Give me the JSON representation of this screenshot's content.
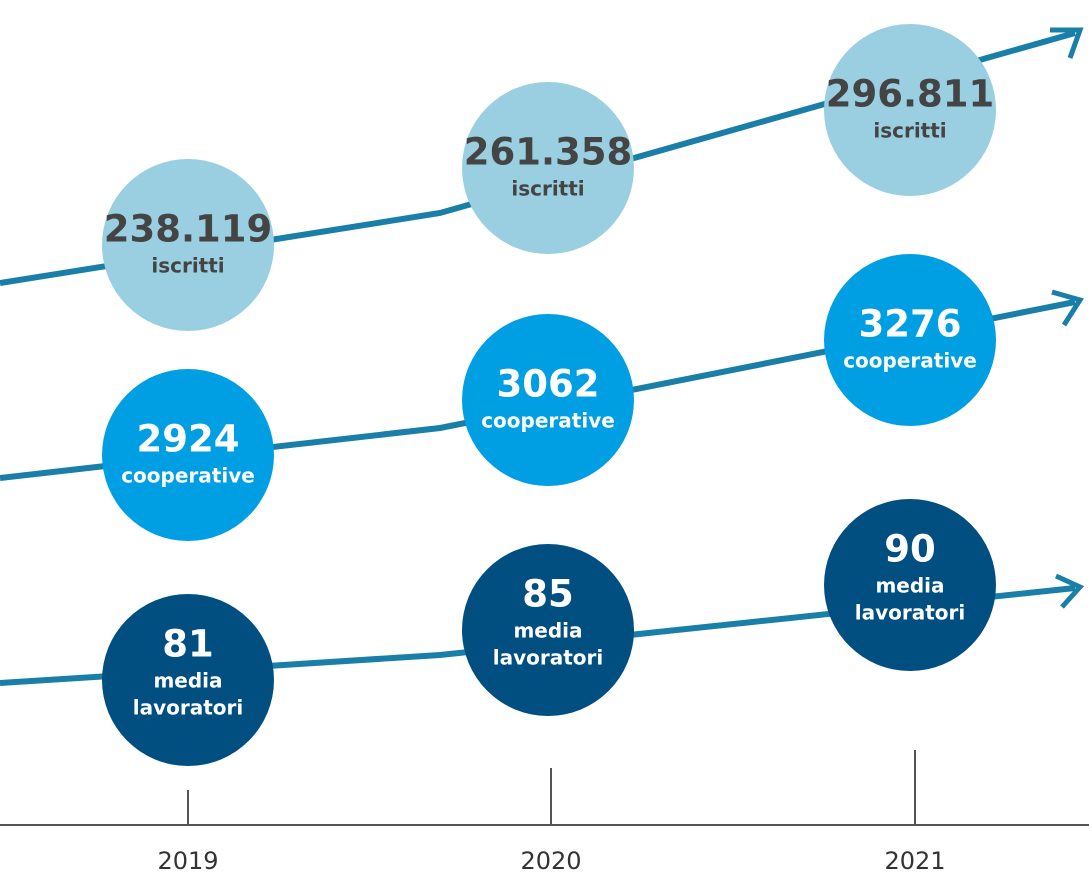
{
  "rows": [
    {
      "items": [
        {
          "value": "238.119",
          "label": [
            "iscritti"
          ]
        },
        {
          "value": "261.358",
          "label": [
            "iscritti"
          ]
        },
        {
          "value": "296.811",
          "label": [
            "iscritti"
          ]
        }
      ]
    },
    {
      "items": [
        {
          "value": "2924",
          "label": [
            "cooperative"
          ]
        },
        {
          "value": "3062",
          "label": [
            "cooperative"
          ]
        },
        {
          "value": "3276",
          "label": [
            "cooperative"
          ]
        }
      ]
    },
    {
      "items": [
        {
          "value": "81",
          "label": [
            "media",
            "lavoratori"
          ]
        },
        {
          "value": "85",
          "label": [
            "media",
            "lavoratori"
          ]
        },
        {
          "value": "90",
          "label": [
            "media",
            "lavoratori"
          ]
        }
      ]
    }
  ],
  "years": [
    "2019",
    "2020",
    "2021"
  ]
}
